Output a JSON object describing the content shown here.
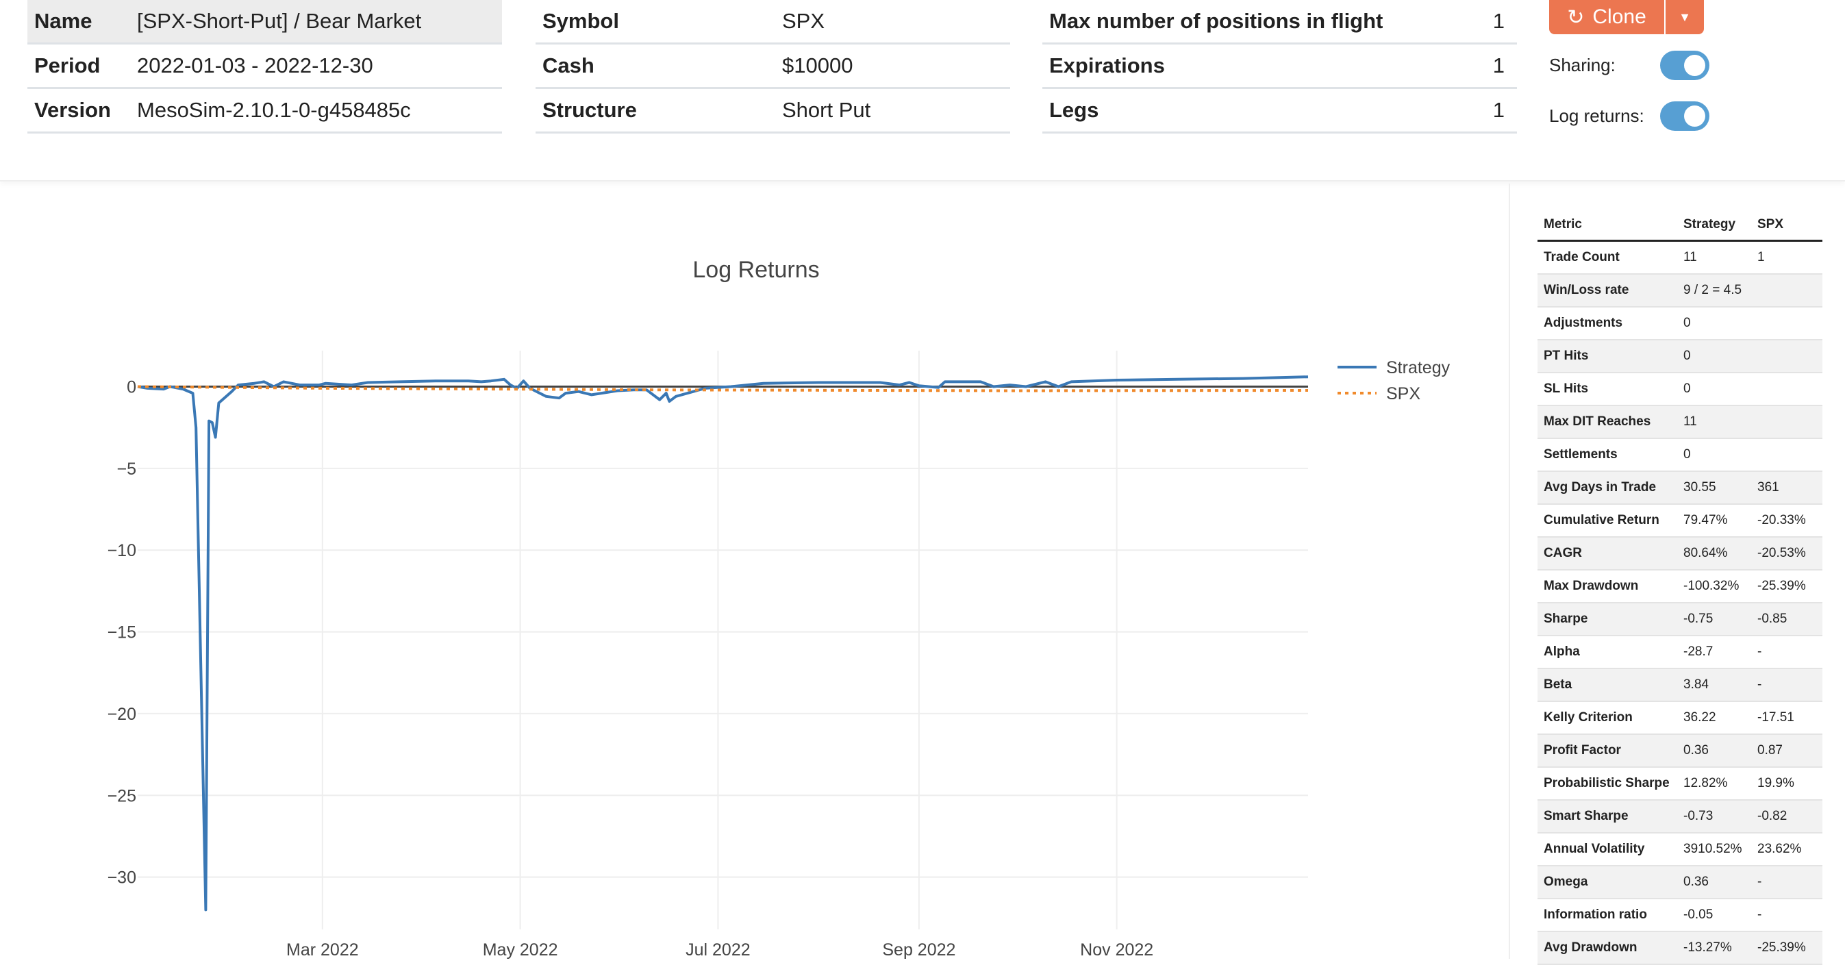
{
  "info": {
    "col1": [
      {
        "k": "Name",
        "v": "[SPX-Short-Put] / Bear Market"
      },
      {
        "k": "Period",
        "v": "2022-01-03 - 2022-12-30"
      },
      {
        "k": "Version",
        "v": "MesoSim-2.10.1-0-g458485c"
      }
    ],
    "col2": [
      {
        "k": "Symbol",
        "v": "SPX"
      },
      {
        "k": "Cash",
        "v": "$10000"
      },
      {
        "k": "Structure",
        "v": "Short Put"
      }
    ],
    "col3": [
      {
        "k": "Max number of positions in flight",
        "v": "1"
      },
      {
        "k": "Expirations",
        "v": "1"
      },
      {
        "k": "Legs",
        "v": "1"
      }
    ]
  },
  "actions": {
    "clone_label": "Clone",
    "clone_icon": "refresh-icon",
    "dropdown_icon": "caret-down-icon",
    "sharing_label": "Sharing:",
    "sharing_on": true,
    "log_returns_label": "Log returns:",
    "log_returns_on": true,
    "accent": "#ec7650",
    "toggle_color": "#579fd3"
  },
  "stats": {
    "headers": [
      "Metric",
      "Strategy",
      "SPX"
    ],
    "rows": [
      [
        "Trade Count",
        "11",
        "1"
      ],
      [
        "Win/Loss rate",
        "9 / 2 = 4.5",
        ""
      ],
      [
        "Adjustments",
        "0",
        ""
      ],
      [
        "PT Hits",
        "0",
        ""
      ],
      [
        "SL Hits",
        "0",
        ""
      ],
      [
        "Max DIT Reaches",
        "11",
        ""
      ],
      [
        "Settlements",
        "0",
        ""
      ],
      [
        "Avg Days in Trade",
        "30.55",
        "361"
      ],
      [
        "Cumulative Return",
        "79.47%",
        "-20.33%"
      ],
      [
        "CAGR",
        "80.64%",
        "-20.53%"
      ],
      [
        "Max Drawdown",
        "-100.32%",
        "-25.39%"
      ],
      [
        "Sharpe",
        "-0.75",
        "-0.85"
      ],
      [
        "Alpha",
        "-28.7",
        "-"
      ],
      [
        "Beta",
        "3.84",
        "-"
      ],
      [
        "Kelly Criterion",
        "36.22",
        "-17.51"
      ],
      [
        "Profit Factor",
        "0.36",
        "0.87"
      ],
      [
        "Probabilistic Sharpe",
        "12.82%",
        "19.9%"
      ],
      [
        "Smart Sharpe",
        "-0.73",
        "-0.82"
      ],
      [
        "Annual Volatility",
        "3910.52%",
        "23.62%"
      ],
      [
        "Omega",
        "0.36",
        "-"
      ],
      [
        "Information ratio",
        "-0.05",
        "-"
      ],
      [
        "Avg Drawdown",
        "-13.27%",
        "-25.39%"
      ]
    ]
  },
  "chart_data": {
    "type": "line",
    "title": "Log Returns",
    "xlim": [
      "2022-01-03",
      "2022-12-30"
    ],
    "ylim": [
      -33.2,
      2.2
    ],
    "x_ticks": [
      {
        "date": "2022-03-01",
        "label": "Mar 2022"
      },
      {
        "date": "2022-05-01",
        "label": "May 2022"
      },
      {
        "date": "2022-07-01",
        "label": "Jul 2022"
      },
      {
        "date": "2022-09-01",
        "label": "Sep 2022"
      },
      {
        "date": "2022-11-01",
        "label": "Nov 2022"
      }
    ],
    "y_ticks": [
      {
        "v": 0,
        "label": "0"
      },
      {
        "v": -5,
        "label": "−5"
      },
      {
        "v": -10,
        "label": "−10"
      },
      {
        "v": -15,
        "label": "−15"
      },
      {
        "v": -20,
        "label": "−20"
      },
      {
        "v": -25,
        "label": "−25"
      },
      {
        "v": -30,
        "label": "−30"
      }
    ],
    "grid": true,
    "legend": "top-right",
    "series": [
      {
        "name": "Strategy",
        "color": "#3a78b5",
        "style": "solid",
        "points": [
          [
            "2022-01-03",
            0
          ],
          [
            "2022-01-06",
            -0.1
          ],
          [
            "2022-01-11",
            -0.15
          ],
          [
            "2022-01-13",
            0
          ],
          [
            "2022-01-17",
            -0.15
          ],
          [
            "2022-01-20",
            -0.4
          ],
          [
            "2022-01-21",
            -2.5
          ],
          [
            "2022-01-24",
            -32
          ],
          [
            "2022-01-25",
            -2.1
          ],
          [
            "2022-01-26",
            -2.2
          ],
          [
            "2022-01-27",
            -3.1
          ],
          [
            "2022-01-28",
            -1
          ],
          [
            "2022-02-01",
            -0.3
          ],
          [
            "2022-02-03",
            0.1
          ],
          [
            "2022-02-08",
            0.2
          ],
          [
            "2022-02-11",
            0.3
          ],
          [
            "2022-02-14",
            0
          ],
          [
            "2022-02-17",
            0.3
          ],
          [
            "2022-02-22",
            0.1
          ],
          [
            "2022-02-28",
            0.1
          ],
          [
            "2022-03-02",
            0.2
          ],
          [
            "2022-03-10",
            0.1
          ],
          [
            "2022-03-15",
            0.25
          ],
          [
            "2022-03-25",
            0.3
          ],
          [
            "2022-04-05",
            0.35
          ],
          [
            "2022-04-15",
            0.35
          ],
          [
            "2022-04-19",
            0.3
          ],
          [
            "2022-04-22",
            0.35
          ],
          [
            "2022-04-26",
            0.45
          ],
          [
            "2022-04-28",
            0.1
          ],
          [
            "2022-04-30",
            -0.1
          ],
          [
            "2022-05-02",
            0.35
          ],
          [
            "2022-05-04",
            -0.1
          ],
          [
            "2022-05-09",
            -0.6
          ],
          [
            "2022-05-13",
            -0.7
          ],
          [
            "2022-05-15",
            -0.4
          ],
          [
            "2022-05-19",
            -0.3
          ],
          [
            "2022-05-23",
            -0.5
          ],
          [
            "2022-05-31",
            -0.25
          ],
          [
            "2022-06-05",
            -0.2
          ],
          [
            "2022-06-09",
            -0.2
          ],
          [
            "2022-06-13",
            -0.8
          ],
          [
            "2022-06-15",
            -0.4
          ],
          [
            "2022-06-16",
            -0.9
          ],
          [
            "2022-06-18",
            -0.6
          ],
          [
            "2022-06-27",
            -0.1
          ],
          [
            "2022-07-05",
            0
          ],
          [
            "2022-07-15",
            0.2
          ],
          [
            "2022-08-01",
            0.25
          ],
          [
            "2022-08-20",
            0.25
          ],
          [
            "2022-08-26",
            0.1
          ],
          [
            "2022-08-29",
            0.25
          ],
          [
            "2022-09-01",
            0.05
          ],
          [
            "2022-09-07",
            -0.05
          ],
          [
            "2022-09-09",
            0.3
          ],
          [
            "2022-09-20",
            0.3
          ],
          [
            "2022-09-24",
            0
          ],
          [
            "2022-09-29",
            0.1
          ],
          [
            "2022-10-04",
            0
          ],
          [
            "2022-10-10",
            0.3
          ],
          [
            "2022-10-14",
            0
          ],
          [
            "2022-10-18",
            0.3
          ],
          [
            "2022-11-01",
            0.4
          ],
          [
            "2022-11-20",
            0.45
          ],
          [
            "2022-12-10",
            0.5
          ],
          [
            "2022-12-30",
            0.6
          ]
        ]
      },
      {
        "name": "SPX",
        "color": "#f08a2c",
        "style": "dotted",
        "points": [
          [
            "2022-01-03",
            0
          ],
          [
            "2022-03-01",
            -0.1
          ],
          [
            "2022-06-16",
            -0.2
          ],
          [
            "2022-09-30",
            -0.25
          ],
          [
            "2022-12-30",
            -0.23
          ]
        ]
      }
    ]
  }
}
